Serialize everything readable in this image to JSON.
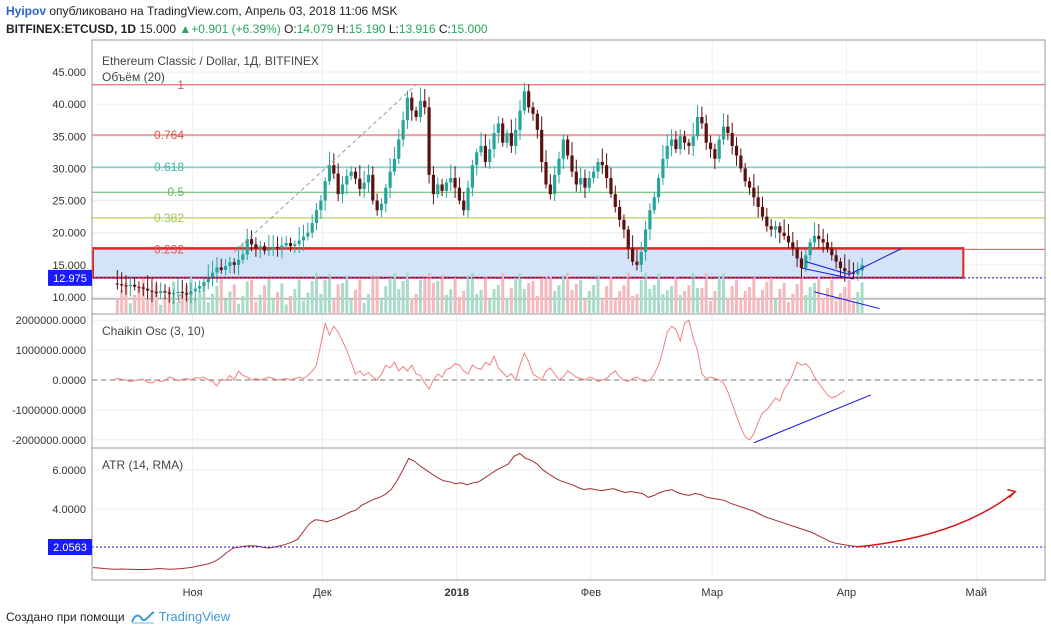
{
  "header": {
    "user": "Hyipov",
    "published": "опубликовано на TradingView.com, Апрель 03, 2018 11:06 MSK",
    "symbol": "BITFINEX:ETCUSD, 1D",
    "price": "15.000",
    "change": "+0.901 (+6.39%)",
    "o_label": "O:",
    "o_value": "14.079",
    "h_label": "H:",
    "h_value": "15.190",
    "l_label": "L:",
    "l_value": "13.916",
    "c_label": "C:",
    "c_value": "15.000"
  },
  "footer": {
    "created": "Создано при помощи",
    "brand": "TradingView"
  },
  "colors": {
    "up": "#26a69a",
    "down": "#5d1010",
    "fib_red": "#e05050",
    "fib_teal": "#40b8a8",
    "fib_green": "#5cb85c",
    "fib_lime": "#a8c840",
    "box": "#c8dcf8",
    "osc": "#f08080",
    "atr": "#a03030",
    "marker": "#1010e0"
  },
  "chart_data": [
    {
      "type": "candlestick",
      "title": "Ethereum Classic / Dollar, 1Д, BITFINEX",
      "volume_label": "Объём (20)",
      "ylim": [
        8,
        48
      ],
      "yticks": [
        "10.000",
        "15.000",
        "20.000",
        "25.000",
        "30.000",
        "35.000",
        "40.000",
        "45.000"
      ],
      "ytick_values": [
        10,
        15,
        20,
        25,
        30,
        35,
        40,
        45
      ],
      "price_marker": "12.975",
      "price_marker_value": 12.975,
      "x_labels": [
        "Ноя",
        "Дек",
        "2018",
        "Фев",
        "Мар",
        "Апр",
        "Май"
      ],
      "x_label_days": [
        23,
        53,
        84,
        115,
        143,
        174,
        204
      ],
      "fib_levels": [
        {
          "label": "1",
          "value": 43.0,
          "color": "red"
        },
        {
          "label": "0.764",
          "value": 35.2,
          "color": "red"
        },
        {
          "label": "0.618",
          "value": 30.2,
          "color": "teal"
        },
        {
          "label": "0.5",
          "value": 26.3,
          "color": "green"
        },
        {
          "label": "0.382",
          "value": 22.3,
          "color": "lime"
        },
        {
          "label": "0.232",
          "value": 17.4,
          "color": "red"
        },
        {
          "label": "0",
          "value": 9.7,
          "color": "gray"
        }
      ],
      "box": {
        "from_value": 17.6,
        "to_value": 13.0,
        "from_day": 0,
        "to_day": 201
      },
      "close_series": [
        12.1,
        12.0,
        11.8,
        11.7,
        11.9,
        11.6,
        11.5,
        11.3,
        11.0,
        10.8,
        10.6,
        10.9,
        10.7,
        10.5,
        10.6,
        10.8,
        10.6,
        10.4,
        10.9,
        11.3,
        11.7,
        12.3,
        13.0,
        13.8,
        14.6,
        14.2,
        14.8,
        15.4,
        15.0,
        15.8,
        16.6,
        19.0,
        18.2,
        17.6,
        17.9,
        17.2,
        17.5,
        17.8,
        17.6,
        18.0,
        18.4,
        17.9,
        18.2,
        18.8,
        19.4,
        20.0,
        21.5,
        23.5,
        25.0,
        28.0,
        30.5,
        29.2,
        26.0,
        27.5,
        28.8,
        29.5,
        28.4,
        26.8,
        27.8,
        29.0,
        25.0,
        23.5,
        24.5,
        27.0,
        29.5,
        31.5,
        34.5,
        37.5,
        41.0,
        39.0,
        38.0,
        40.5,
        39.5,
        29.0,
        26.0,
        27.5,
        26.5,
        27.8,
        28.5,
        27.0,
        25.0,
        23.5,
        27.0,
        30.5,
        32.5,
        33.5,
        31.0,
        33.0,
        35.5,
        37.0,
        34.0,
        35.5,
        33.5,
        36.0,
        39.0,
        42.0,
        39.5,
        38.5,
        36.0,
        31.0,
        27.5,
        26.0,
        29.0,
        31.5,
        34.5,
        32.0,
        29.5,
        27.5,
        28.5,
        27.0,
        28.5,
        29.5,
        31.0,
        30.5,
        28.5,
        26.0,
        24.0,
        22.0,
        20.5,
        17.5,
        15.5,
        15.0,
        17.0,
        20.5,
        23.5,
        25.5,
        28.5,
        31.5,
        33.5,
        34.5,
        33.0,
        35.0,
        34.0,
        33.5,
        35.0,
        38.0,
        37.0,
        34.0,
        33.0,
        31.5,
        34.5,
        36.5,
        35.5,
        33.5,
        32.0,
        30.0,
        28.0,
        27.0,
        25.5,
        24.0,
        22.5,
        21.0,
        20.5,
        21.0,
        20.0,
        19.5,
        18.5,
        17.5,
        16.0,
        14.5,
        16.5,
        18.5,
        19.5,
        19.0,
        18.5,
        17.5,
        16.5,
        15.5,
        14.5,
        14.0,
        13.8,
        13.6,
        14.1,
        15.0
      ],
      "osc_values_millions": [
        0.0,
        0.05,
        0.02,
        0.0,
        -0.05,
        -0.02,
        0.0,
        0.03,
        -0.08,
        -0.1,
        0.0,
        -0.05,
        -0.02,
        0.1,
        0.05,
        -0.03,
        0.02,
        0.05,
        0.0,
        0.08,
        0.06,
        0.1,
        0.0,
        -0.05,
        -0.2,
        0.03,
        -0.02,
        0.15,
        0.0,
        0.3,
        0.15,
        0.1,
        0.0,
        0.05,
        0.0,
        0.05,
        0.1,
        0.05,
        0.0,
        0.02,
        0.05,
        0.0,
        0.05,
        0.1,
        0.05,
        0.15,
        0.3,
        0.5,
        1.2,
        1.9,
        1.5,
        1.8,
        1.6,
        1.3,
        1.0,
        0.6,
        0.2,
        0.3,
        0.15,
        0.25,
        0.1,
        0.0,
        0.2,
        0.5,
        0.4,
        0.6,
        0.3,
        0.45,
        0.3,
        0.5,
        0.2,
        0.15,
        -0.1,
        -0.3,
        0.0,
        0.2,
        0.1,
        0.35,
        0.4,
        0.55,
        0.5,
        0.3,
        0.2,
        0.5,
        0.4,
        0.35,
        0.6,
        0.5,
        0.8,
        0.4,
        0.25,
        0.1,
        0.2,
        0.0,
        0.5,
        0.9,
        0.6,
        0.2,
        0.1,
        0.0,
        0.3,
        0.4,
        0.2,
        0.0,
        0.1,
        0.3,
        0.2,
        0.1,
        0.05,
        0.0,
        0.1,
        0.05,
        -0.05,
        0.0,
        0.05,
        0.2,
        0.3,
        0.1,
        0.0,
        -0.05,
        0.05,
        0.1,
        0.0,
        -0.05,
        0.0,
        0.2,
        0.5,
        1.0,
        1.6,
        1.8,
        1.7,
        1.3,
        1.9,
        2.0,
        1.4,
        1.0,
        0.2,
        0.05,
        0.1,
        0.05,
        0.0,
        -0.1,
        -0.4,
        -0.8,
        -1.2,
        -1.6,
        -1.9,
        -2.0,
        -1.8,
        -1.4,
        -1.1,
        -1.0,
        -0.8,
        -0.6,
        -0.7,
        -0.3,
        -0.1,
        0.2,
        0.6,
        0.5,
        0.55,
        0.4,
        0.1,
        -0.1,
        -0.3,
        -0.5,
        -0.6,
        -0.55,
        -0.45,
        -0.35
      ],
      "atr_values": [
        1.0,
        0.98,
        0.95,
        0.93,
        0.92,
        0.93,
        0.92,
        0.91,
        0.9,
        0.9,
        0.92,
        0.95,
        0.94,
        0.92,
        0.93,
        0.95,
        0.98,
        1.02,
        1.08,
        1.15,
        1.22,
        1.35,
        1.55,
        1.8,
        2.0,
        2.05,
        2.1,
        2.12,
        2.1,
        2.05,
        2.0,
        2.05,
        2.12,
        2.2,
        2.3,
        2.45,
        2.85,
        3.25,
        3.45,
        3.42,
        3.35,
        3.45,
        3.55,
        3.7,
        3.85,
        3.95,
        4.2,
        4.35,
        4.5,
        4.6,
        4.75,
        5.0,
        5.45,
        6.0,
        6.6,
        6.45,
        6.2,
        6.0,
        5.8,
        5.6,
        5.45,
        5.4,
        5.3,
        5.35,
        5.25,
        5.35,
        5.4,
        5.6,
        5.8,
        6.0,
        6.15,
        6.3,
        6.7,
        6.85,
        6.6,
        6.5,
        6.3,
        6.0,
        5.8,
        5.6,
        5.45,
        5.35,
        5.25,
        5.1,
        5.0,
        5.05,
        5.0,
        4.95,
        5.0,
        5.05,
        4.95,
        4.85,
        4.9,
        4.85,
        4.8,
        4.6,
        4.7,
        4.85,
        4.95,
        5.0,
        4.85,
        4.75,
        4.7,
        4.8,
        4.75,
        4.6,
        4.55,
        4.5,
        4.45,
        4.3,
        4.2,
        4.1,
        4.0,
        3.9,
        3.75,
        3.6,
        3.5,
        3.4,
        3.3,
        3.2,
        3.1,
        3.0,
        2.9,
        2.8,
        2.65,
        2.5,
        2.35,
        2.25,
        2.2,
        2.15,
        2.1,
        2.06
      ],
      "osc_title": "Chaikin Osc (3, 10)",
      "osc_yticks": [
        "2000000.0000",
        "1000000.0000",
        "0.0000",
        "-1000000.0000",
        "-2000000.0000"
      ],
      "osc_ytick_values": [
        2,
        1,
        0,
        -1,
        -2
      ],
      "atr_title": "ATR (14, RMA)",
      "atr_yticks": [
        "6.0000",
        "4.0000"
      ],
      "atr_ytick_values": [
        6,
        4
      ],
      "atr_marker": "2.0563",
      "atr_marker_value": 2.0563
    }
  ]
}
